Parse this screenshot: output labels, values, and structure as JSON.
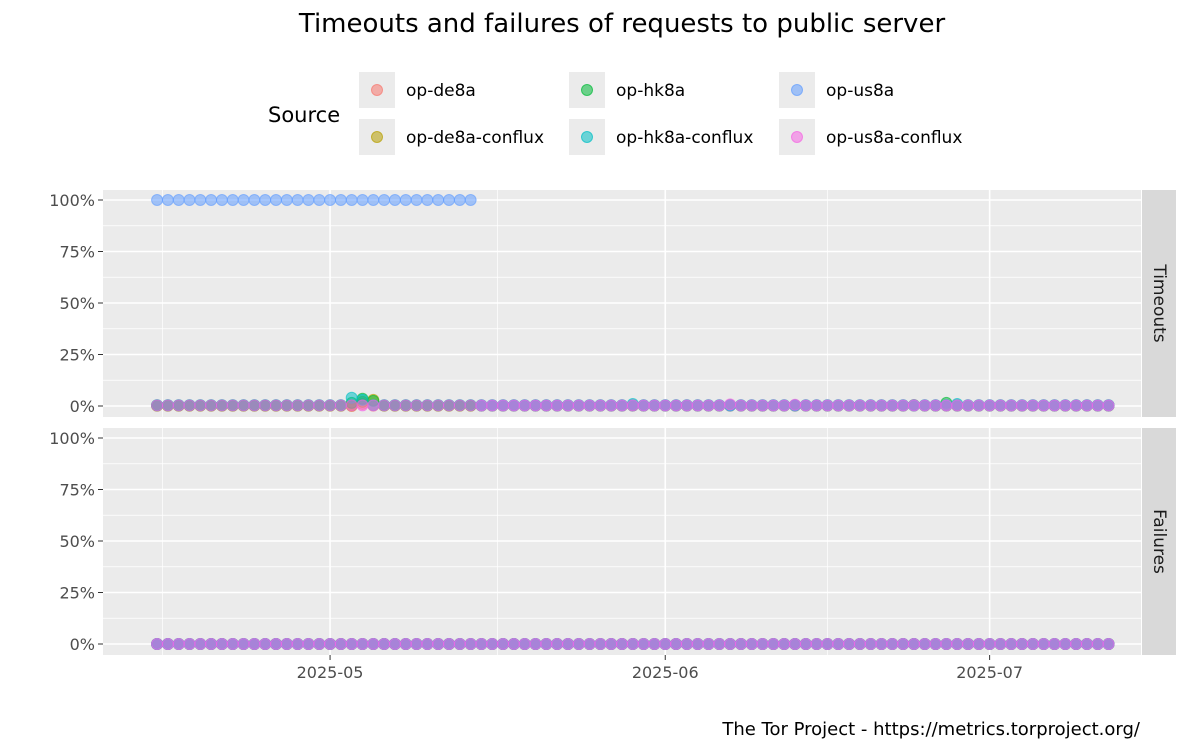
{
  "chart_data": {
    "type": "scatter",
    "title": "Timeouts and failures of requests to public server",
    "caption": "The Tor Project - https://metrics.torproject.org/",
    "legend_title": "Source",
    "legend_position": "top",
    "grid": true,
    "x_range": [
      "2025-04-10",
      "2025-07-15"
    ],
    "x_ticks": [
      {
        "date": "2025-05-01",
        "label": "2025-05"
      },
      {
        "date": "2025-06-01",
        "label": "2025-06"
      },
      {
        "date": "2025-07-01",
        "label": "2025-07"
      }
    ],
    "y_range": [
      0,
      1
    ],
    "y_ticks": [
      {
        "value": 0,
        "label": "0%"
      },
      {
        "value": 0.25,
        "label": "25%"
      },
      {
        "value": 0.5,
        "label": "50%"
      },
      {
        "value": 0.75,
        "label": "75%"
      },
      {
        "value": 1,
        "label": "100%"
      }
    ],
    "facets": [
      "Timeouts",
      "Failures"
    ],
    "x_dates": [
      "2025-04-15",
      "2025-04-16",
      "2025-04-17",
      "2025-04-18",
      "2025-04-19",
      "2025-04-20",
      "2025-04-21",
      "2025-04-22",
      "2025-04-23",
      "2025-04-24",
      "2025-04-25",
      "2025-04-26",
      "2025-04-27",
      "2025-04-28",
      "2025-04-29",
      "2025-04-30",
      "2025-05-01",
      "2025-05-02",
      "2025-05-03",
      "2025-05-04",
      "2025-05-05",
      "2025-05-06",
      "2025-05-07",
      "2025-05-08",
      "2025-05-09",
      "2025-05-10",
      "2025-05-11",
      "2025-05-12",
      "2025-05-13",
      "2025-05-14",
      "2025-05-15",
      "2025-05-16",
      "2025-05-17",
      "2025-05-18",
      "2025-05-19",
      "2025-05-20",
      "2025-05-21",
      "2025-05-22",
      "2025-05-23",
      "2025-05-24",
      "2025-05-25",
      "2025-05-26",
      "2025-05-27",
      "2025-05-28",
      "2025-05-29",
      "2025-05-30",
      "2025-05-31",
      "2025-06-01",
      "2025-06-02",
      "2025-06-03",
      "2025-06-04",
      "2025-06-05",
      "2025-06-06",
      "2025-06-07",
      "2025-06-08",
      "2025-06-09",
      "2025-06-10",
      "2025-06-11",
      "2025-06-12",
      "2025-06-13",
      "2025-06-14",
      "2025-06-15",
      "2025-06-16",
      "2025-06-17",
      "2025-06-18",
      "2025-06-19",
      "2025-06-20",
      "2025-06-21",
      "2025-06-22",
      "2025-06-23",
      "2025-06-24",
      "2025-06-25",
      "2025-06-26",
      "2025-06-27",
      "2025-06-28",
      "2025-06-29",
      "2025-06-30",
      "2025-07-01",
      "2025-07-02",
      "2025-07-03",
      "2025-07-04",
      "2025-07-05",
      "2025-07-06",
      "2025-07-07",
      "2025-07-08",
      "2025-07-09",
      "2025-07-10",
      "2025-07-11",
      "2025-07-12"
    ],
    "series": [
      {
        "name": "op-de8a",
        "color": "#F8766D",
        "timeouts_default": 0.002,
        "timeouts_overrides": {
          "2025-05-03": 0.0,
          "2025-05-04": 0.01,
          "2025-06-24": 0.005
        },
        "failures_default": 0
      },
      {
        "name": "op-de8a-conflux",
        "color": "#B79F00",
        "timeouts_default": 0.002,
        "timeouts_overrides": {
          "2025-05-04": 0.02,
          "2025-05-05": 0.03
        },
        "failures_default": 0
      },
      {
        "name": "op-hk8a",
        "color": "#00BA38",
        "timeouts_default": 0.003,
        "timeouts_overrides": {
          "2025-05-03": 0.015,
          "2025-05-04": 0.035,
          "2025-05-05": 0.025,
          "2025-06-27": 0.015
        },
        "failures_default": 0
      },
      {
        "name": "op-hk8a-conflux",
        "color": "#00BFC4",
        "timeouts_default": 0.004,
        "timeouts_overrides": {
          "2025-05-03": 0.04,
          "2025-05-04": 0.03,
          "2025-05-29": 0.01,
          "2025-06-28": 0.01
        },
        "failures_default": 0
      },
      {
        "name": "op-us8a",
        "color": "#619CFF",
        "timeouts_default": 0.002,
        "timeouts_overrides": {
          "2025-04-15": 1,
          "2025-04-16": 1,
          "2025-04-17": 1,
          "2025-04-18": 1,
          "2025-04-19": 1,
          "2025-04-20": 1,
          "2025-04-21": 1,
          "2025-04-22": 1,
          "2025-04-23": 1,
          "2025-04-24": 1,
          "2025-04-25": 1,
          "2025-04-26": 1,
          "2025-04-27": 1,
          "2025-04-28": 1,
          "2025-04-29": 1,
          "2025-04-30": 1,
          "2025-05-01": 1,
          "2025-05-02": 1,
          "2025-05-03": 1,
          "2025-05-04": 1,
          "2025-05-05": 1,
          "2025-05-06": 1,
          "2025-05-07": 1,
          "2025-05-08": 1,
          "2025-05-09": 1,
          "2025-05-10": 1,
          "2025-05-11": 1,
          "2025-05-12": 1,
          "2025-05-13": 1,
          "2025-05-14": 1
        },
        "failures_default": 0
      },
      {
        "name": "op-us8a-conflux",
        "color": "#F564E3",
        "timeouts_default": 0.003,
        "timeouts_overrides": {
          "2025-06-07": 0.008,
          "2025-06-13": 0.006
        },
        "failures_default": 0
      }
    ]
  }
}
